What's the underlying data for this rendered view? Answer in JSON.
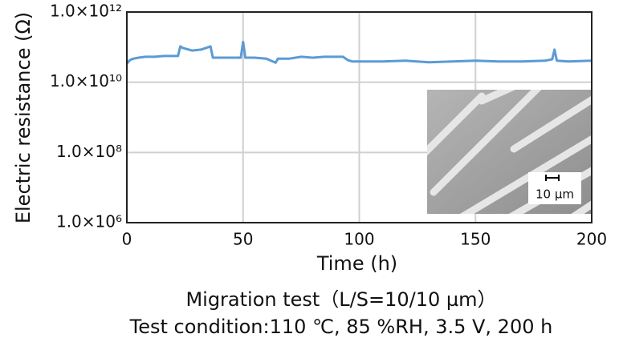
{
  "chart_data": {
    "type": "line",
    "xlabel": "Time (h)",
    "ylabel": "Electric resistance (Ω)",
    "captions": [
      "Migration test（L/S=10/10 µm）",
      "Test condition:110 ℃, 85 %RH, 3.5 V, 200 h"
    ],
    "annotations": [
      "10 µm"
    ],
    "x": [
      0,
      1,
      2,
      3,
      5,
      8,
      12,
      16,
      20,
      22,
      23,
      24,
      28,
      32,
      36,
      37,
      38,
      42,
      46,
      49,
      50,
      51,
      55,
      60,
      64,
      65,
      70,
      75,
      80,
      85,
      90,
      93,
      95,
      97,
      100,
      110,
      120,
      130,
      140,
      150,
      160,
      170,
      180,
      183,
      184,
      185,
      190,
      200
    ],
    "series": [
      {
        "color": "#5b9bd5",
        "values": [
          33000000000.0,
          41000000000.0,
          45000000000.0,
          47000000000.0,
          50000000000.0,
          53000000000.0,
          53000000000.0,
          56000000000.0,
          56000000000.0,
          56000000000.0,
          105000000000.0,
          95000000000.0,
          80000000000.0,
          85000000000.0,
          105000000000.0,
          50000000000.0,
          50000000000.0,
          50000000000.0,
          50000000000.0,
          50000000000.0,
          140000000000.0,
          50000000000.0,
          50000000000.0,
          47000000000.0,
          36000000000.0,
          47000000000.0,
          47000000000.0,
          53000000000.0,
          50000000000.0,
          53000000000.0,
          53000000000.0,
          53000000000.0,
          43000000000.0,
          39000000000.0,
          39000000000.0,
          39000000000.0,
          41000000000.0,
          37000000000.0,
          39000000000.0,
          41000000000.0,
          39000000000.0,
          39000000000.0,
          41000000000.0,
          45000000000.0,
          85000000000.0,
          41000000000.0,
          39000000000.0,
          41000000000.0
        ]
      }
    ],
    "xlim": [
      0,
      200
    ],
    "xticks": [
      0,
      50,
      100,
      150,
      200
    ],
    "ylim": [
      1000000.0,
      1000000000000.0
    ],
    "log_y": true,
    "yticks": [
      {
        "value": 1000000.0,
        "label": "1.0×10⁶"
      },
      {
        "value": 100000000.0,
        "label": "1.0×10⁸"
      },
      {
        "value": 10000000000.0,
        "label": "1.0×10¹⁰"
      },
      {
        "value": 1000000000000.0,
        "label": "1.0×10¹²"
      }
    ],
    "grid": true
  }
}
